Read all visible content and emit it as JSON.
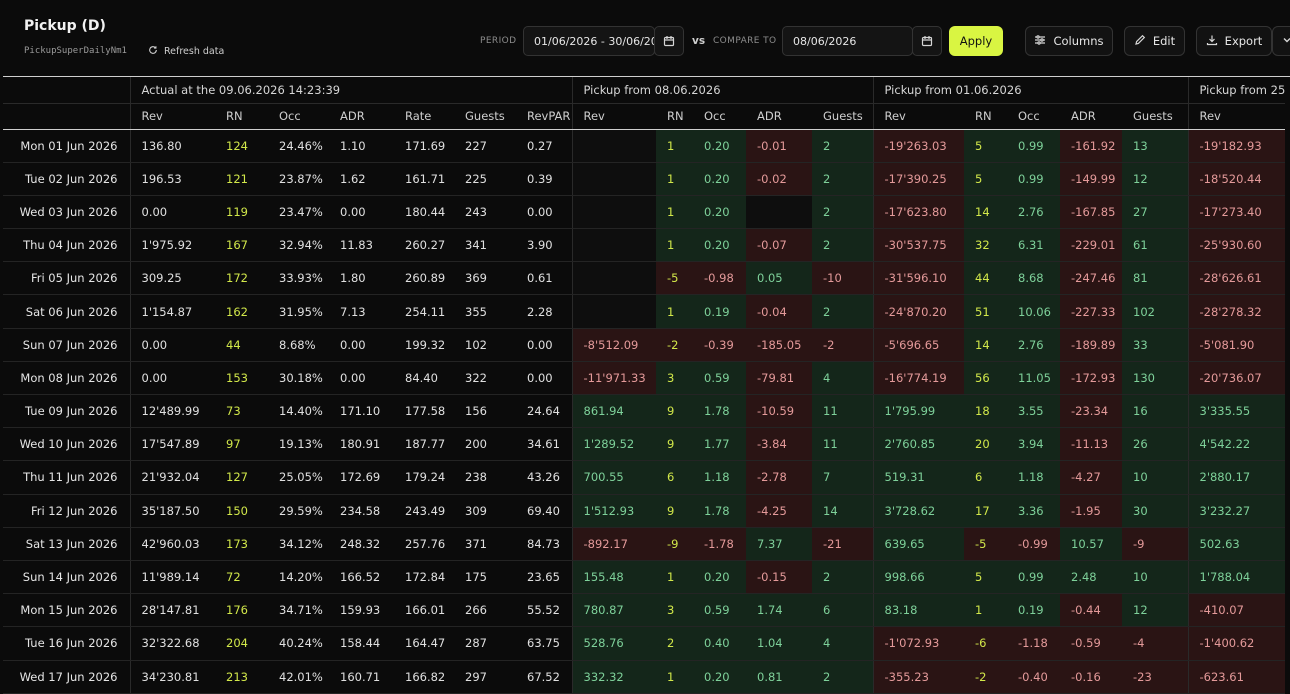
{
  "header": {
    "title": "Pickup (D)",
    "subtitle": "PickupSuperDailyNm1",
    "refresh_label": "Refresh data",
    "period_label": "PERIOD",
    "period_value": "01/06/2026 - 30/06/2026",
    "vs_label": "vs",
    "compare_label": "COMPARE TO",
    "compare_value": "08/06/2026",
    "apply_label": "Apply",
    "columns_label": "Columns",
    "edit_label": "Edit",
    "export_label": "Export"
  },
  "colors": {
    "accent": "#d9f542",
    "positive_bg": "#14261a",
    "negative_bg": "#2a1414"
  },
  "groups": [
    "Actual at the 09.06.2026 14:23:39",
    "Pickup from 08.06.2026",
    "Pickup from 01.06.2026",
    "Pickup from 25"
  ],
  "columns": {
    "actual": [
      "Rev",
      "RN",
      "Occ",
      "ADR",
      "Rate",
      "Guests",
      "RevPAR"
    ],
    "pickup": [
      "Rev",
      "RN",
      "Occ",
      "ADR",
      "Guests"
    ],
    "partial": [
      "Rev"
    ]
  },
  "rows": [
    {
      "date": "Mon 01 Jun 2026",
      "actual": [
        "136.80",
        "124",
        "24.46%",
        "1.10",
        "171.69",
        "227",
        "0.27"
      ],
      "p1": [
        "",
        "1",
        "0.20",
        "-0.01",
        "2"
      ],
      "p2": [
        "-19'263.03",
        "5",
        "0.99",
        "-161.92",
        "13"
      ],
      "p3": [
        "-19'182.93"
      ]
    },
    {
      "date": "Tue 02 Jun 2026",
      "actual": [
        "196.53",
        "121",
        "23.87%",
        "1.62",
        "161.71",
        "225",
        "0.39"
      ],
      "p1": [
        "",
        "1",
        "0.20",
        "-0.02",
        "2"
      ],
      "p2": [
        "-17'390.25",
        "5",
        "0.99",
        "-149.99",
        "12"
      ],
      "p3": [
        "-18'520.44"
      ]
    },
    {
      "date": "Wed 03 Jun 2026",
      "actual": [
        "0.00",
        "119",
        "23.47%",
        "0.00",
        "180.44",
        "243",
        "0.00"
      ],
      "p1": [
        "",
        "1",
        "0.20",
        "",
        "2"
      ],
      "p2": [
        "-17'623.80",
        "14",
        "2.76",
        "-167.85",
        "27"
      ],
      "p3": [
        "-17'273.40"
      ]
    },
    {
      "date": "Thu 04 Jun 2026",
      "actual": [
        "1'975.92",
        "167",
        "32.94%",
        "11.83",
        "260.27",
        "341",
        "3.90"
      ],
      "p1": [
        "",
        "1",
        "0.20",
        "-0.07",
        "2"
      ],
      "p2": [
        "-30'537.75",
        "32",
        "6.31",
        "-229.01",
        "61"
      ],
      "p3": [
        "-25'930.60"
      ]
    },
    {
      "date": "Fri 05 Jun 2026",
      "actual": [
        "309.25",
        "172",
        "33.93%",
        "1.80",
        "260.89",
        "369",
        "0.61"
      ],
      "p1": [
        "",
        "-5",
        "-0.98",
        "0.05",
        "-10"
      ],
      "p2": [
        "-31'596.10",
        "44",
        "8.68",
        "-247.46",
        "81"
      ],
      "p3": [
        "-28'626.61"
      ]
    },
    {
      "date": "Sat 06 Jun 2026",
      "actual": [
        "1'154.87",
        "162",
        "31.95%",
        "7.13",
        "254.11",
        "355",
        "2.28"
      ],
      "p1": [
        "",
        "1",
        "0.19",
        "-0.04",
        "2"
      ],
      "p2": [
        "-24'870.20",
        "51",
        "10.06",
        "-227.33",
        "102"
      ],
      "p3": [
        "-28'278.32"
      ]
    },
    {
      "date": "Sun 07 Jun 2026",
      "actual": [
        "0.00",
        "44",
        "8.68%",
        "0.00",
        "199.32",
        "102",
        "0.00"
      ],
      "p1": [
        "-8'512.09",
        "-2",
        "-0.39",
        "-185.05",
        "-2"
      ],
      "p2": [
        "-5'696.65",
        "14",
        "2.76",
        "-189.89",
        "33"
      ],
      "p3": [
        "-5'081.90"
      ]
    },
    {
      "date": "Mon 08 Jun 2026",
      "actual": [
        "0.00",
        "153",
        "30.18%",
        "0.00",
        "84.40",
        "322",
        "0.00"
      ],
      "p1": [
        "-11'971.33",
        "3",
        "0.59",
        "-79.81",
        "4"
      ],
      "p2": [
        "-16'774.19",
        "56",
        "11.05",
        "-172.93",
        "130"
      ],
      "p3": [
        "-20'736.07"
      ]
    },
    {
      "date": "Tue 09 Jun 2026",
      "actual": [
        "12'489.99",
        "73",
        "14.40%",
        "171.10",
        "177.58",
        "156",
        "24.64"
      ],
      "p1": [
        "861.94",
        "9",
        "1.78",
        "-10.59",
        "11"
      ],
      "p2": [
        "1'795.99",
        "18",
        "3.55",
        "-23.34",
        "16"
      ],
      "p3": [
        "3'335.55"
      ]
    },
    {
      "date": "Wed 10 Jun 2026",
      "actual": [
        "17'547.89",
        "97",
        "19.13%",
        "180.91",
        "187.77",
        "200",
        "34.61"
      ],
      "p1": [
        "1'289.52",
        "9",
        "1.77",
        "-3.84",
        "11"
      ],
      "p2": [
        "2'760.85",
        "20",
        "3.94",
        "-11.13",
        "26"
      ],
      "p3": [
        "4'542.22"
      ]
    },
    {
      "date": "Thu 11 Jun 2026",
      "actual": [
        "21'932.04",
        "127",
        "25.05%",
        "172.69",
        "179.24",
        "238",
        "43.26"
      ],
      "p1": [
        "700.55",
        "6",
        "1.18",
        "-2.78",
        "7"
      ],
      "p2": [
        "519.31",
        "6",
        "1.18",
        "-4.27",
        "10"
      ],
      "p3": [
        "2'880.17"
      ]
    },
    {
      "date": "Fri 12 Jun 2026",
      "actual": [
        "35'187.50",
        "150",
        "29.59%",
        "234.58",
        "243.49",
        "309",
        "69.40"
      ],
      "p1": [
        "1'512.93",
        "9",
        "1.78",
        "-4.25",
        "14"
      ],
      "p2": [
        "3'728.62",
        "17",
        "3.36",
        "-1.95",
        "30"
      ],
      "p3": [
        "3'232.27"
      ]
    },
    {
      "date": "Sat 13 Jun 2026",
      "actual": [
        "42'960.03",
        "173",
        "34.12%",
        "248.32",
        "257.76",
        "371",
        "84.73"
      ],
      "p1": [
        "-892.17",
        "-9",
        "-1.78",
        "7.37",
        "-21"
      ],
      "p2": [
        "639.65",
        "-5",
        "-0.99",
        "10.57",
        "-9"
      ],
      "p3": [
        "502.63"
      ]
    },
    {
      "date": "Sun 14 Jun 2026",
      "actual": [
        "11'989.14",
        "72",
        "14.20%",
        "166.52",
        "172.84",
        "175",
        "23.65"
      ],
      "p1": [
        "155.48",
        "1",
        "0.20",
        "-0.15",
        "2"
      ],
      "p2": [
        "998.66",
        "5",
        "0.99",
        "2.48",
        "10"
      ],
      "p3": [
        "1'788.04"
      ]
    },
    {
      "date": "Mon 15 Jun 2026",
      "actual": [
        "28'147.81",
        "176",
        "34.71%",
        "159.93",
        "166.01",
        "266",
        "55.52"
      ],
      "p1": [
        "780.87",
        "3",
        "0.59",
        "1.74",
        "6"
      ],
      "p2": [
        "83.18",
        "1",
        "0.19",
        "-0.44",
        "12"
      ],
      "p3": [
        "-410.07"
      ]
    },
    {
      "date": "Tue 16 Jun 2026",
      "actual": [
        "32'322.68",
        "204",
        "40.24%",
        "158.44",
        "164.47",
        "287",
        "63.75"
      ],
      "p1": [
        "528.76",
        "2",
        "0.40",
        "1.04",
        "4"
      ],
      "p2": [
        "-1'072.93",
        "-6",
        "-1.18",
        "-0.59",
        "-4"
      ],
      "p3": [
        "-1'400.62"
      ]
    },
    {
      "date": "Wed 17 Jun 2026",
      "actual": [
        "34'230.81",
        "213",
        "42.01%",
        "160.71",
        "166.82",
        "297",
        "67.52"
      ],
      "p1": [
        "332.32",
        "1",
        "0.20",
        "0.81",
        "2"
      ],
      "p2": [
        "-355.23",
        "-2",
        "-0.40",
        "-0.16",
        "-23"
      ],
      "p3": [
        "-623.61"
      ]
    }
  ]
}
